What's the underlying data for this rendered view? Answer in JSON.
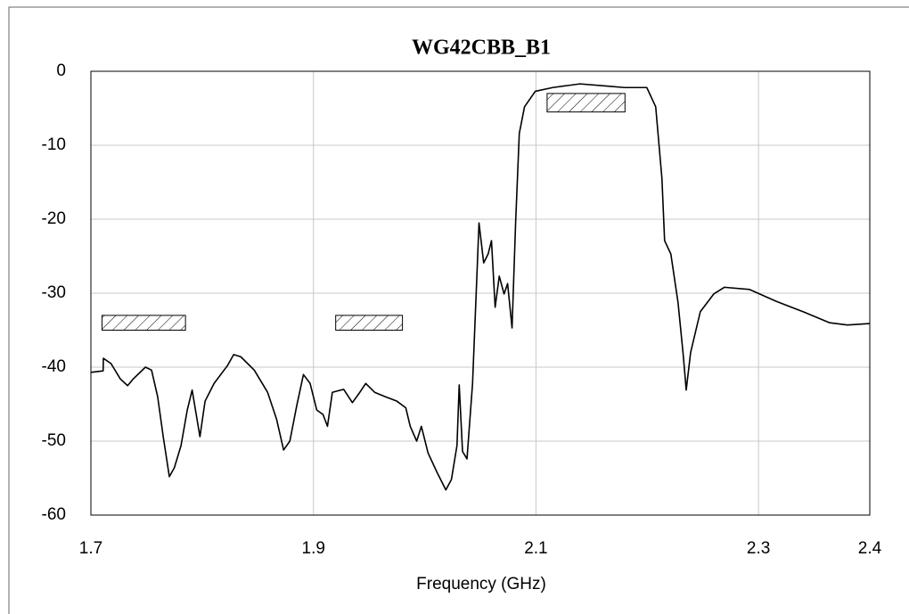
{
  "chart_data": {
    "type": "line",
    "title": "WG42CBB_B1",
    "x_label": "Frequency (GHz)",
    "x": [
      1.7,
      1.711,
      1.7112,
      1.718,
      1.7265,
      1.733,
      1.738,
      1.749,
      1.7545,
      1.76,
      1.765,
      1.7705,
      1.775,
      1.781,
      1.7866,
      1.791,
      1.796,
      1.798,
      1.8026,
      1.8107,
      1.8227,
      1.8283,
      1.8347,
      1.8468,
      1.8588,
      1.8668,
      1.8732,
      1.8788,
      1.885,
      1.891,
      1.897,
      1.903,
      1.9086,
      1.9126,
      1.917,
      1.9272,
      1.935,
      1.9417,
      1.947,
      1.955,
      1.9647,
      1.975,
      1.983,
      1.987,
      1.9928,
      1.997,
      2.003,
      2.011,
      2.019,
      2.024,
      2.029,
      2.031,
      2.034,
      2.038,
      2.043,
      2.0488,
      2.053,
      2.057,
      2.06,
      2.0633,
      2.067,
      2.0713,
      2.0745,
      2.0785,
      2.0817,
      2.085,
      2.0897,
      2.0994,
      2.115,
      2.1395,
      2.1635,
      2.1796,
      2.1996,
      2.2076,
      2.2132,
      2.2156,
      2.2212,
      2.2277,
      2.2325,
      2.235,
      2.239,
      2.2477,
      2.2598,
      2.2694,
      2.292,
      2.3159,
      2.34,
      2.364,
      2.38,
      2.4
    ],
    "series": [
      {
        "color": "#000000",
        "values": [
          -40.7,
          -40.5,
          -38.8,
          -39.5,
          -41.6,
          -42.5,
          -41.6,
          -40,
          -40.4,
          -44,
          -49.4,
          -54.8,
          -53.6,
          -50.6,
          -45.8,
          -43.1,
          -47.6,
          -49.4,
          -44.6,
          -42.2,
          -39.8,
          -38.3,
          -38.6,
          -40.4,
          -43.4,
          -47,
          -51.2,
          -50,
          -45.2,
          -41,
          -42.2,
          -45.8,
          -46.4,
          -48,
          -43.4,
          -43,
          -44.8,
          -43.4,
          -42.2,
          -43.4,
          -44,
          -44.6,
          -45.5,
          -48,
          -50,
          -48,
          -51.6,
          -54.2,
          -56.6,
          -55.2,
          -50.6,
          -42.4,
          -51.4,
          -52.4,
          -42.2,
          -20.5,
          -25.9,
          -24.7,
          -22.9,
          -31.9,
          -27.7,
          -30.1,
          -28.7,
          -34.7,
          -20.5,
          -8.4,
          -4.8,
          -2.7,
          -2.2,
          -1.7,
          -2,
          -2.2,
          -2.2,
          -4.8,
          -14.5,
          -22.9,
          -24.7,
          -31.3,
          -38.6,
          -43.1,
          -38,
          -32.5,
          -30.1,
          -29.2,
          -29.5,
          -31.1,
          -32.5,
          -34,
          -34.3,
          -34.1
        ]
      }
    ],
    "masks": [
      {
        "x": [
          1.71,
          1.785
        ],
        "y": [
          -35,
          -33
        ]
      },
      {
        "x": [
          1.92,
          1.98
        ],
        "y": [
          -35,
          -33
        ]
      },
      {
        "x": [
          2.11,
          2.18
        ],
        "y": [
          -5.5,
          -3
        ]
      }
    ],
    "xlim": [
      1.7,
      2.4
    ],
    "ylim": [
      -60,
      0
    ],
    "xticks": [
      1.7,
      1.9,
      2.1,
      2.3,
      2.4
    ],
    "yticks": [
      0,
      -10,
      -20,
      -30,
      -40,
      -50,
      -60
    ],
    "grid": true
  }
}
